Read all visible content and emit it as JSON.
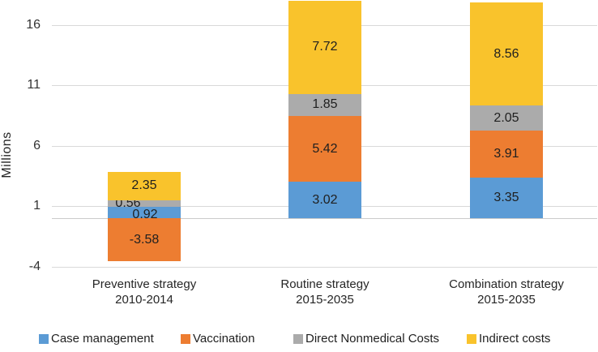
{
  "chart_data": {
    "type": "bar",
    "stacked": true,
    "title": "",
    "xlabel": "",
    "ylabel": "Millions",
    "yticks": [
      16,
      11,
      6,
      1,
      -4
    ],
    "ylim": [
      -4,
      18.1
    ],
    "grid": true,
    "legend_position": "bottom",
    "categories": [
      {
        "line1": "Preventive strategy",
        "line2": "2010-2014"
      },
      {
        "line1": "Routine strategy",
        "line2": "2015-2035"
      },
      {
        "line1": "Combination strategy",
        "line2": "2015-2035"
      }
    ],
    "series": [
      {
        "name": "Case management",
        "color": "#5B9BD5",
        "values": [
          0.92,
          3.02,
          3.35
        ]
      },
      {
        "name": "Vaccination",
        "color": "#ED7D31",
        "values": [
          -3.58,
          5.42,
          3.91
        ]
      },
      {
        "name": "Direct Nonmedical Costs",
        "color": "#ABABAB",
        "values": [
          0.56,
          1.85,
          2.05
        ]
      },
      {
        "name": "Indirect costs",
        "color": "#F9C32C",
        "values": [
          2.35,
          7.72,
          8.56
        ]
      }
    ]
  }
}
